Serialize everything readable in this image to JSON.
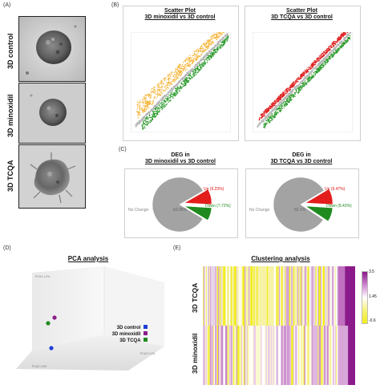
{
  "panels": {
    "a": "(A)",
    "b": "(B)",
    "c": "(C)",
    "d": "(D)",
    "e": "(E)"
  },
  "panel_a": {
    "rows": [
      "3D control",
      "3D minoxidil",
      "3D TCQA"
    ]
  },
  "panel_b": {
    "plots": [
      {
        "title_line1": "Scatter Plot",
        "title_line2": "3D minoxidil vs 3D control"
      },
      {
        "title_line1": "Scatter Plot",
        "title_line2": "3D TCQA vs 3D control"
      }
    ]
  },
  "panel_c": {
    "pies": [
      {
        "title_line1": "DEG in",
        "title_line2": "3D minoxidil vs 3D control",
        "no_change_label": "No Change",
        "no_change_pct": "83.05%",
        "up_label": "Up (9.23%)",
        "down_label": "Down (7.72%)",
        "up": 9.23,
        "down": 7.72,
        "no_change": 83.05
      },
      {
        "title_line1": "DEG in",
        "title_line2": "3D TCQA vs 3D control",
        "no_change_label": "No Change",
        "no_change_pct": "82.1%",
        "up_label": "Up (9.47%)",
        "down_label": "Down (8.43%)",
        "up": 9.47,
        "down": 8.43,
        "no_change": 82.1
      }
    ],
    "colors": {
      "up": "#e31c1c",
      "down": "#1f8a1f",
      "no_change": "#a3a3a3"
    }
  },
  "panel_d": {
    "title": "PCA analysis",
    "axis_labels": [
      "PCA1 1.2%",
      "PCA2 0.4%",
      "PCA3 1.8%"
    ],
    "legend": [
      {
        "label": "3D control",
        "color": "#1f3fd6"
      },
      {
        "label": "3D minoxidil",
        "color": "#8a1f8a"
      },
      {
        "label": "3D TCQA",
        "color": "#1f8a1f"
      }
    ]
  },
  "panel_e": {
    "title": "Clustering analysis",
    "rows": [
      "3D TCQA",
      "3D minoxidil"
    ],
    "scale_labels": [
      "3.5",
      "1.45",
      "-0.6"
    ],
    "colors": {
      "high": "#8b1a8b",
      "mid": "#ffffff",
      "low": "#f2ee1a"
    }
  }
}
